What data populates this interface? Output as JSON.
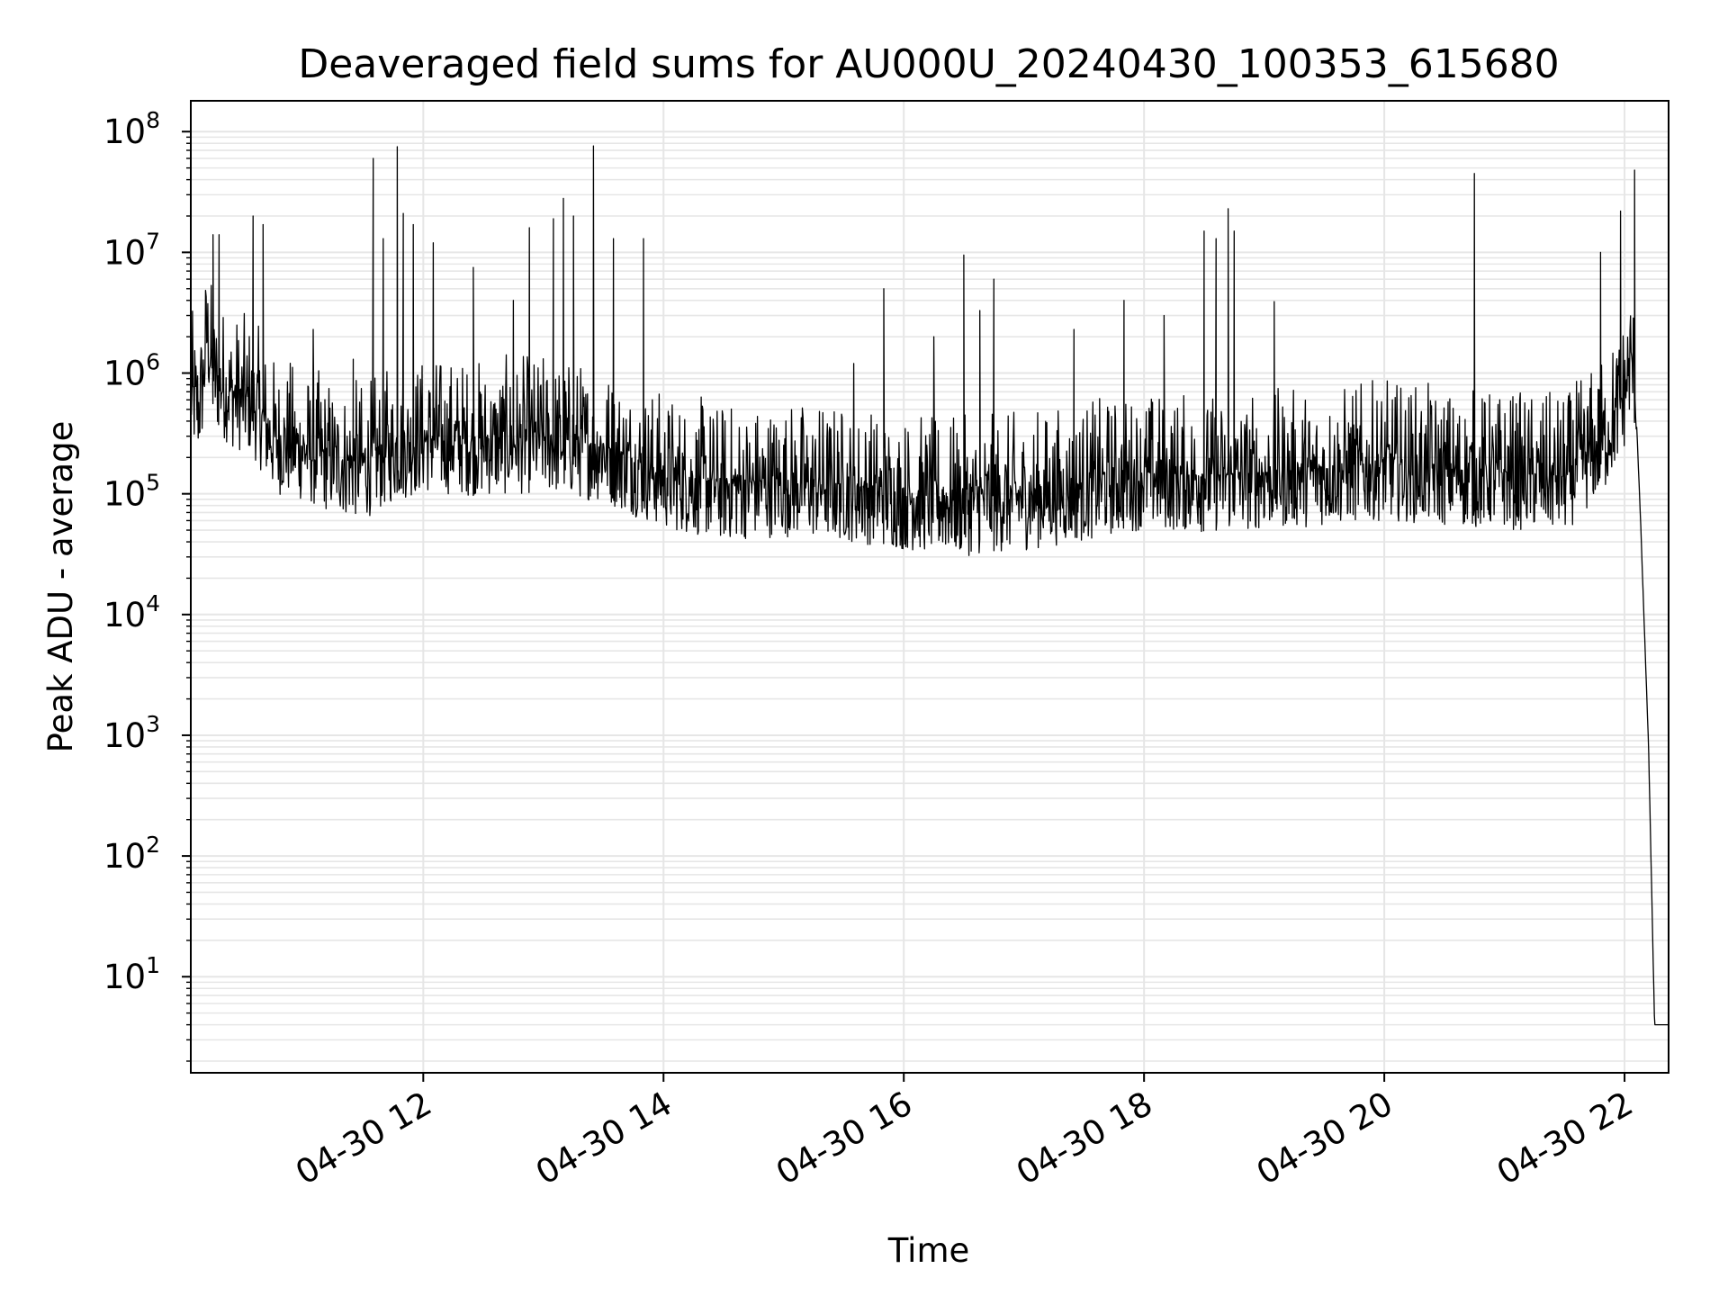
{
  "chart_data": {
    "type": "line",
    "title": "Deaveraged field sums for AU000U_20240430_100353_615680",
    "xlabel": "Time",
    "ylabel": "Peak ADU - average",
    "yscale": "log",
    "ylim": [
      1.6,
      180000000
    ],
    "xlim": [
      "2024-04-30 10:03:53",
      "2024-04-30 22:22:00"
    ],
    "grid": true,
    "legend": "none",
    "line_color": "#000000",
    "grid_color": "#e6e6e6",
    "x_ticks": [
      {
        "value": "2024-04-30 12:00",
        "label": "04-30 12"
      },
      {
        "value": "2024-04-30 14:00",
        "label": "04-30 14"
      },
      {
        "value": "2024-04-30 16:00",
        "label": "04-30 16"
      },
      {
        "value": "2024-04-30 18:00",
        "label": "04-30 18"
      },
      {
        "value": "2024-04-30 20:00",
        "label": "04-30 20"
      },
      {
        "value": "2024-04-30 22:00",
        "label": "04-30 22"
      }
    ],
    "y_ticks": [
      {
        "value": 10,
        "base": "10",
        "exp": "1"
      },
      {
        "value": 100,
        "base": "10",
        "exp": "2"
      },
      {
        "value": 1000,
        "base": "10",
        "exp": "3"
      },
      {
        "value": 10000,
        "base": "10",
        "exp": "4"
      },
      {
        "value": 100000,
        "base": "10",
        "exp": "5"
      },
      {
        "value": 1000000,
        "base": "10",
        "exp": "6"
      },
      {
        "value": 10000000,
        "base": "10",
        "exp": "7"
      },
      {
        "value": 100000000,
        "base": "10",
        "exp": "8"
      }
    ],
    "series": [
      {
        "points": [
          [
            "2024-04-30 10:04",
            700000
          ],
          [
            "2024-04-30 10:08",
            550000
          ],
          [
            "2024-04-30 10:10",
            900000
          ],
          [
            "2024-04-30 10:12",
            2300000
          ],
          [
            "2024-04-30 10:15",
            1000000
          ],
          [
            "2024-04-30 10:25",
            700000
          ],
          [
            "2024-04-30 10:35",
            600000
          ],
          [
            "2024-04-30 10:45",
            300000
          ],
          [
            "2024-04-30 11:00",
            250000
          ],
          [
            "2024-04-30 11:15",
            200000
          ],
          [
            "2024-04-30 11:30",
            180000
          ],
          [
            "2024-04-30 11:45",
            250000
          ],
          [
            "2024-04-30 12:00",
            300000
          ],
          [
            "2024-04-30 12:30",
            280000
          ],
          [
            "2024-04-30 13:00",
            300000
          ],
          [
            "2024-04-30 13:30",
            250000
          ],
          [
            "2024-04-30 14:00",
            150000
          ],
          [
            "2024-04-30 14:30",
            120000
          ],
          [
            "2024-04-30 15:00",
            130000
          ],
          [
            "2024-04-30 15:30",
            120000
          ],
          [
            "2024-04-30 16:00",
            100000
          ],
          [
            "2024-04-30 16:30",
            90000
          ],
          [
            "2024-04-30 17:00",
            100000
          ],
          [
            "2024-04-30 17:30",
            120000
          ],
          [
            "2024-04-30 18:00",
            150000
          ],
          [
            "2024-04-30 18:30",
            140000
          ],
          [
            "2024-04-30 19:00",
            150000
          ],
          [
            "2024-04-30 19:30",
            160000
          ],
          [
            "2024-04-30 20:00",
            180000
          ],
          [
            "2024-04-30 20:30",
            160000
          ],
          [
            "2024-04-30 21:00",
            150000
          ],
          [
            "2024-04-30 21:30",
            140000
          ],
          [
            "2024-04-30 21:50",
            300000
          ],
          [
            "2024-04-30 22:00",
            700000
          ],
          [
            "2024-04-30 22:03",
            1400000
          ],
          [
            "2024-04-30 22:05",
            1000000
          ],
          [
            "2024-04-30 22:08",
            60000
          ],
          [
            "2024-04-30 22:12",
            800
          ],
          [
            "2024-04-30 22:15",
            4
          ],
          [
            "2024-04-30 22:22",
            4
          ]
        ],
        "noise_band": {
          "low_factor": 0.3,
          "high_factor": 5
        },
        "spikes": [
          [
            "2024-04-30 10:15",
            14000000
          ],
          [
            "2024-04-30 10:18",
            14000000
          ],
          [
            "2024-04-30 10:35",
            20000000
          ],
          [
            "2024-04-30 10:40",
            17000000
          ],
          [
            "2024-04-30 11:05",
            2300000
          ],
          [
            "2024-04-30 11:25",
            1300000
          ],
          [
            "2024-04-30 11:35",
            60000000
          ],
          [
            "2024-04-30 11:40",
            13000000
          ],
          [
            "2024-04-30 11:47",
            75000000
          ],
          [
            "2024-04-30 11:50",
            21000000
          ],
          [
            "2024-04-30 11:55",
            17000000
          ],
          [
            "2024-04-30 12:05",
            12000000
          ],
          [
            "2024-04-30 12:25",
            7500000
          ],
          [
            "2024-04-30 12:45",
            4000000
          ],
          [
            "2024-04-30 12:53",
            16000000
          ],
          [
            "2024-04-30 13:05",
            19000000
          ],
          [
            "2024-04-30 13:10",
            28000000
          ],
          [
            "2024-04-30 13:15",
            20000000
          ],
          [
            "2024-04-30 13:25",
            76000000
          ],
          [
            "2024-04-30 13:35",
            13000000
          ],
          [
            "2024-04-30 13:50",
            13000000
          ],
          [
            "2024-04-30 15:35",
            1200000
          ],
          [
            "2024-04-30 15:50",
            5000000
          ],
          [
            "2024-04-30 16:15",
            2000000
          ],
          [
            "2024-04-30 16:30",
            9500000
          ],
          [
            "2024-04-30 16:38",
            3300000
          ],
          [
            "2024-04-30 16:45",
            6000000
          ],
          [
            "2024-04-30 17:25",
            2300000
          ],
          [
            "2024-04-30 17:50",
            4000000
          ],
          [
            "2024-04-30 18:10",
            3000000
          ],
          [
            "2024-04-30 18:30",
            15000000
          ],
          [
            "2024-04-30 18:36",
            13000000
          ],
          [
            "2024-04-30 18:42",
            23000000
          ],
          [
            "2024-04-30 18:45",
            15000000
          ],
          [
            "2024-04-30 19:05",
            3900000
          ],
          [
            "2024-04-30 20:45",
            45000000
          ],
          [
            "2024-04-30 21:48",
            10000000
          ],
          [
            "2024-04-30 21:58",
            22000000
          ],
          [
            "2024-04-30 22:05",
            48000000
          ]
        ]
      }
    ]
  }
}
